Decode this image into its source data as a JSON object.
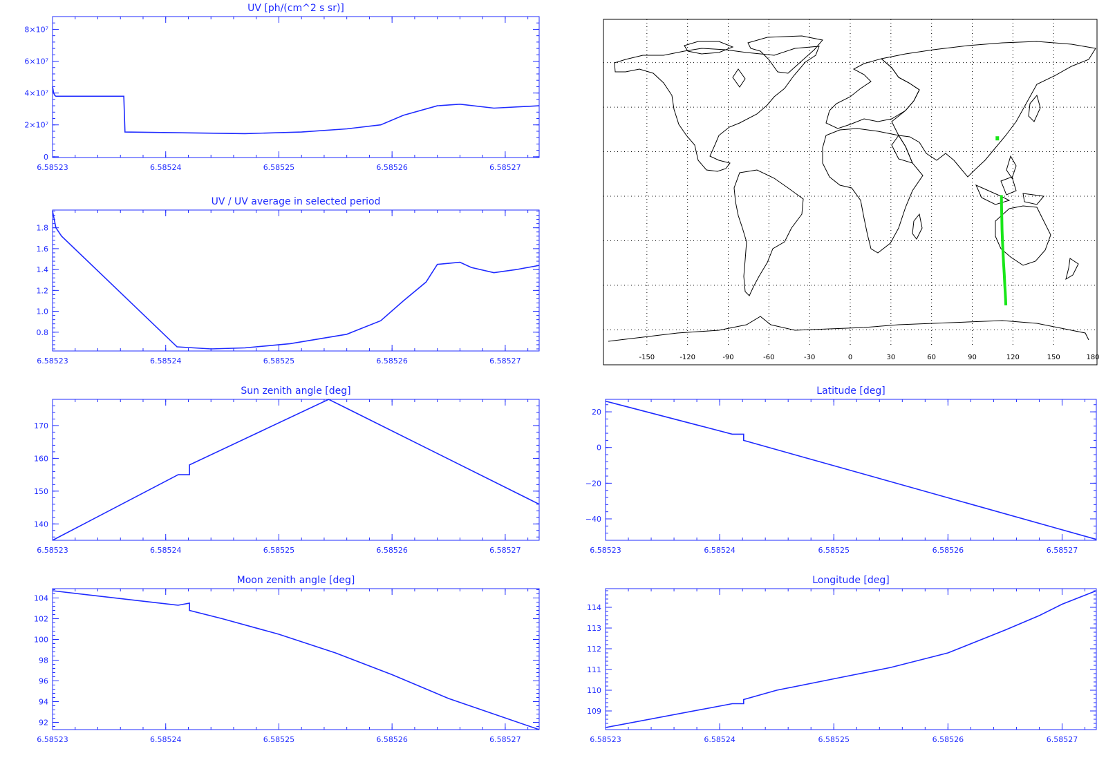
{
  "colors": {
    "axis": "#1f2bff",
    "line": "#1f2bff",
    "track": "#19e619",
    "map": "#000000"
  },
  "chart_data": [
    {
      "type": "line",
      "title": "UV [ph/(cm^2 s sr)]",
      "xticks": [
        "6.58523",
        "6.58524",
        "6.58525",
        "6.58526",
        "6.58527"
      ],
      "yticks": [
        "0",
        "2×10⁷",
        "4×10⁷",
        "6×10⁷",
        "8×10⁷"
      ],
      "xlim": [
        6.58523,
        6.585273
      ],
      "ylim": [
        -500000,
        88000000
      ],
      "series": [
        {
          "x": [
            6.58523,
            6.5852301,
            6.5852302,
            6.5852303,
            6.5852363,
            6.5852364,
            6.585242,
            6.585247,
            6.585252,
            6.585256,
            6.585259,
            6.585261,
            6.585264,
            6.585266,
            6.585269,
            6.585273
          ],
          "y": [
            44000000,
            40000000,
            38500000,
            38000000,
            38000000,
            15500000,
            15000000,
            14500000,
            15500000,
            17500000,
            20000000,
            26000000,
            32000000,
            33000000,
            30500000,
            32000000
          ]
        }
      ]
    },
    {
      "type": "line",
      "title": "UV / UV average in selected period",
      "xticks": [
        "6.58523",
        "6.58524",
        "6.58525",
        "6.58526",
        "6.58527"
      ],
      "yticks": [
        "0.8",
        "1.0",
        "1.2",
        "1.4",
        "1.6",
        "1.8"
      ],
      "xlim": [
        6.58523,
        6.585273
      ],
      "ylim": [
        0.62,
        1.97
      ],
      "series": [
        {
          "x": [
            6.58523,
            6.5852303,
            6.5852308,
            6.585241,
            6.585244,
            6.585247,
            6.585251,
            6.585256,
            6.585259,
            6.585261,
            6.585263,
            6.585264,
            6.585266,
            6.585267,
            6.585269,
            6.585271,
            6.585273
          ],
          "y": [
            1.96,
            1.8,
            1.72,
            0.66,
            0.64,
            0.65,
            0.69,
            0.78,
            0.91,
            1.1,
            1.28,
            1.45,
            1.47,
            1.42,
            1.37,
            1.4,
            1.44
          ]
        }
      ]
    },
    {
      "type": "line",
      "title": "Sun zenith angle [deg]",
      "xticks": [
        "6.58523",
        "6.58524",
        "6.58525",
        "6.58526",
        "6.58527"
      ],
      "yticks": [
        "140",
        "150",
        "160",
        "170"
      ],
      "xlim": [
        6.58523,
        6.585273
      ],
      "ylim": [
        135,
        178
      ],
      "series": [
        {
          "x": [
            6.58523,
            6.5852411,
            6.5852421,
            6.5852421,
            6.5852544,
            6.585273
          ],
          "y": [
            135,
            155,
            155,
            158,
            178,
            146
          ]
        }
      ]
    },
    {
      "type": "line",
      "title": "Latitude [deg]",
      "xticks": [
        "6.58523",
        "6.58524",
        "6.58525",
        "6.58526",
        "6.58527"
      ],
      "yticks": [
        "−40",
        "−20",
        "0",
        "20"
      ],
      "xlim": [
        6.58523,
        6.585273
      ],
      "ylim": [
        -52,
        27
      ],
      "series": [
        {
          "x": [
            6.58523,
            6.5852411,
            6.5852421,
            6.5852421,
            6.585273
          ],
          "y": [
            26,
            7.5,
            7.5,
            4,
            -51.5
          ]
        }
      ]
    },
    {
      "type": "line",
      "title": "Moon zenith angle [deg]",
      "xticks": [
        "6.58523",
        "6.58524",
        "6.58525",
        "6.58526",
        "6.58527"
      ],
      "yticks": [
        "92",
        "94",
        "96",
        "98",
        "100",
        "102",
        "104"
      ],
      "xlim": [
        6.58523,
        6.585273
      ],
      "ylim": [
        91.3,
        104.9
      ],
      "series": [
        {
          "x": [
            6.58523,
            6.5852411,
            6.5852421,
            6.5852421,
            6.585245,
            6.58525,
            6.585255,
            6.58526,
            6.585265,
            6.585273
          ],
          "y": [
            104.7,
            103.3,
            103.5,
            102.8,
            102.0,
            100.5,
            98.7,
            96.6,
            94.3,
            91.3
          ]
        }
      ]
    },
    {
      "type": "line",
      "title": "Longitude [deg]",
      "xticks": [
        "6.58523",
        "6.58524",
        "6.58525",
        "6.58526",
        "6.58527"
      ],
      "yticks": [
        "109",
        "110",
        "111",
        "112",
        "113",
        "114"
      ],
      "xlim": [
        6.58523,
        6.585273
      ],
      "ylim": [
        108.1,
        114.9
      ],
      "series": [
        {
          "x": [
            6.58523,
            6.5852411,
            6.5852421,
            6.5852421,
            6.585245,
            6.58525,
            6.585255,
            6.58526,
            6.585265,
            6.585268,
            6.58527,
            6.585273
          ],
          "y": [
            108.2,
            109.35,
            109.35,
            109.55,
            110.0,
            110.55,
            111.1,
            111.8,
            112.9,
            113.6,
            114.15,
            114.8
          ]
        }
      ]
    }
  ],
  "map": {
    "xticks": [
      "-150",
      "-120",
      "-90",
      "-60",
      "-30",
      "0",
      "30",
      "60",
      "90",
      "120",
      "150",
      "180"
    ],
    "track": {
      "lon": [
        111.5,
        111.6,
        111.8,
        112.0,
        112.3,
        112.7,
        113.1,
        113.6,
        114.0,
        114.3,
        114.6,
        114.8
      ],
      "lat": [
        0.5,
        -5,
        -10,
        -15,
        -20,
        -25,
        -30,
        -35,
        -40,
        -43,
        -46,
        -49
      ]
    },
    "track_isolated_point": {
      "lon": 108.5,
      "lat": 26
    }
  }
}
